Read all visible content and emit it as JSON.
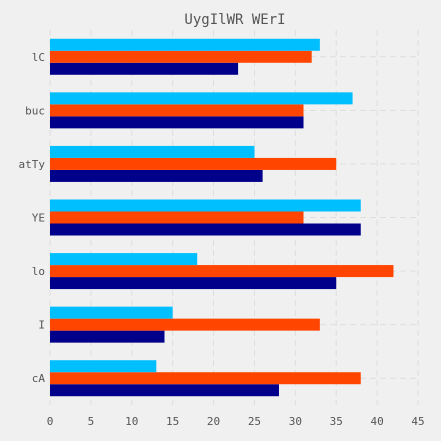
{
  "chart_data": {
    "type": "bar",
    "orientation": "horizontal",
    "title": "UygIlWR  WErI",
    "xlabel": "",
    "ylabel": "",
    "categories": [
      "cA",
      "I",
      "lo",
      "YE",
      "atTy",
      "buc",
      "lC"
    ],
    "series": [
      {
        "color": "#00008b",
        "values": [
          28,
          14,
          35,
          38,
          26,
          31,
          23
        ]
      },
      {
        "color": "#ff4500",
        "values": [
          38,
          33,
          42,
          31,
          35,
          31,
          32
        ]
      },
      {
        "color": "#00bfff",
        "values": [
          13,
          15,
          18,
          38,
          25,
          37,
          33
        ]
      }
    ],
    "xlim": [
      0,
      45
    ],
    "xticks": [
      0,
      5,
      10,
      15,
      20,
      25,
      30,
      35,
      40,
      45
    ],
    "grid": true,
    "legend": "none"
  }
}
